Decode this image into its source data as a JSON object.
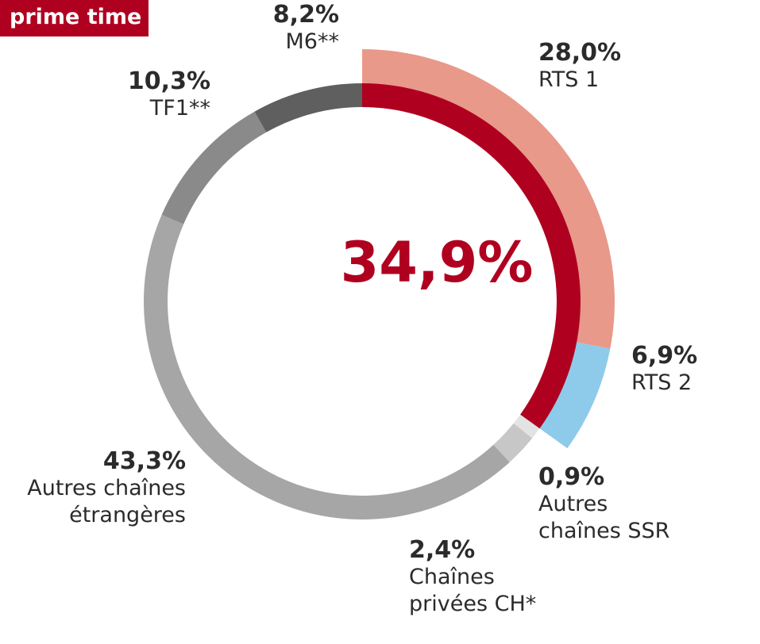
{
  "badge": {
    "label": "prime time"
  },
  "chart_data": {
    "type": "pie",
    "center_value": "34,9%",
    "outer_segments": [
      {
        "name": "RTS 1",
        "label": "28,0%",
        "value": 28.0,
        "color": "#e8998a"
      },
      {
        "name": "RTS 2",
        "label": "6,9%",
        "value": 6.9,
        "color": "#8ecbea"
      }
    ],
    "inner_segments": [
      {
        "name": "SSR",
        "value": 34.9,
        "color": "#b00020"
      },
      {
        "name": "Autres chaînes SSR",
        "label": "0,9%",
        "value": 0.9,
        "color": "#e3e3e3"
      },
      {
        "name": "Chaînes privées CH*",
        "label": "2,4%",
        "value": 2.4,
        "color": "#c7c7c7"
      },
      {
        "name": "Autres chaînes étrangères",
        "label": "43,3%",
        "value": 43.3,
        "color": "#a6a6a6"
      },
      {
        "name": "TF1**",
        "label": "10,3%",
        "value": 10.3,
        "color": "#8a8a8a"
      },
      {
        "name": "M6**",
        "label": "8,2%",
        "value": 8.2,
        "color": "#5f5f5f"
      }
    ]
  },
  "labels": {
    "rts1": {
      "pct": "28,0%",
      "name": "RTS 1"
    },
    "rts2": {
      "pct": "6,9%",
      "name": "RTS 2"
    },
    "ssr": {
      "pct": "0,9%",
      "line1": "Autres",
      "line2": "chaînes SSR"
    },
    "prive": {
      "pct": "2,4%",
      "line1": "Chaînes",
      "line2": "privées CH*"
    },
    "etr": {
      "pct": "43,3%",
      "line1": "Autres chaînes",
      "line2": "étrangères"
    },
    "tf1": {
      "pct": "10,3%",
      "name": "TF1**"
    },
    "m6": {
      "pct": "8,2%",
      "name": "M6**"
    }
  }
}
